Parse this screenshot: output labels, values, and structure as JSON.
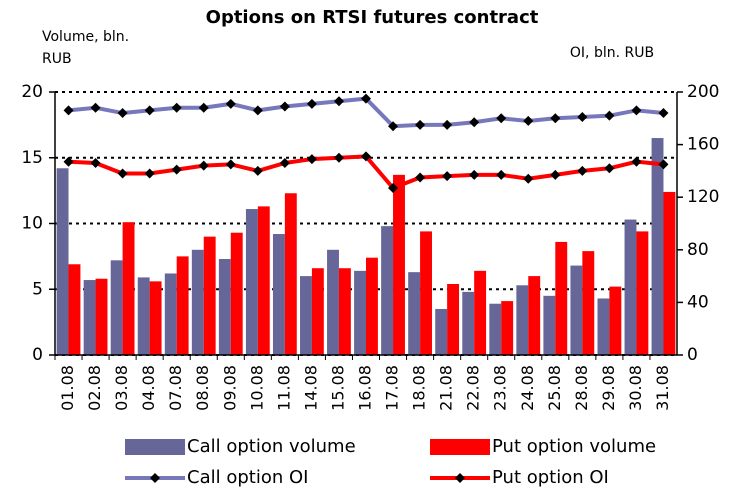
{
  "chart_data": {
    "type": "bar",
    "title": "Options on RTSI futures contract",
    "y_label": "Volume, bln. RUB",
    "y2_label": "OI,  bln. RUB",
    "categories": [
      "01.08",
      "02.08",
      "03.08",
      "04.08",
      "07.08",
      "08.08",
      "09.08",
      "10.08",
      "11.08",
      "14.08",
      "15.08",
      "16.08",
      "17.08",
      "18.08",
      "21.08",
      "22.08",
      "23.08",
      "24.08",
      "25.08",
      "28.08",
      "29.08",
      "30.08",
      "31.08"
    ],
    "series": [
      {
        "name": "Call option volume",
        "type": "bar",
        "color": "#666699",
        "values": [
          14.2,
          5.7,
          7.2,
          5.9,
          6.2,
          8.0,
          7.3,
          11.1,
          9.2,
          6.0,
          8.0,
          6.4,
          9.8,
          6.3,
          3.5,
          4.8,
          3.9,
          5.3,
          4.5,
          6.8,
          4.3,
          10.3,
          16.5
        ]
      },
      {
        "name": "Put option volume",
        "type": "bar",
        "color": "#ff0000",
        "values": [
          6.9,
          5.8,
          10.1,
          5.6,
          7.5,
          9.0,
          9.3,
          11.3,
          12.3,
          6.6,
          6.6,
          7.4,
          13.7,
          9.4,
          5.4,
          6.4,
          4.1,
          6.0,
          8.6,
          7.9,
          5.2,
          9.4,
          12.4
        ]
      },
      {
        "name": "Call option OI",
        "type": "line",
        "axis": "y2",
        "color": "#7777bb",
        "marker_color": "#000000",
        "values": [
          186,
          188,
          184,
          186,
          188,
          188,
          191,
          186,
          189,
          191,
          193,
          195,
          174,
          175,
          175,
          177,
          180,
          178,
          180,
          181,
          182,
          186,
          184
        ]
      },
      {
        "name": "Put option OI",
        "type": "line",
        "axis": "y2",
        "color": "#ff0000",
        "marker_color": "#000000",
        "values": [
          147,
          146,
          138,
          138,
          141,
          144,
          145,
          140,
          146,
          149,
          150,
          151,
          127,
          135,
          136,
          137,
          137,
          134,
          137,
          140,
          142,
          147,
          145
        ]
      }
    ],
    "ylim": [
      0,
      20
    ],
    "yticks": [
      0,
      5,
      10,
      15,
      20
    ],
    "y2lim": [
      0,
      200
    ],
    "y2ticks": [
      0,
      40,
      80,
      120,
      160,
      200
    ],
    "grid": true
  }
}
